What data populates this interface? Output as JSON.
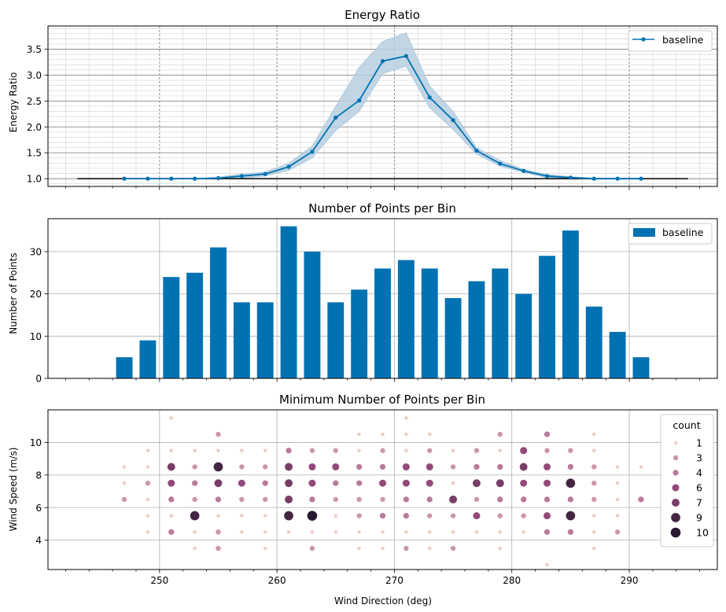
{
  "chart_data": [
    {
      "type": "line",
      "title": "Energy Ratio",
      "xlabel": "",
      "ylabel": "Energy Ratio",
      "xlim": [
        240.5,
        297.5
      ],
      "ylim": [
        0.85,
        3.95
      ],
      "yticks": [
        1.0,
        1.5,
        2.0,
        2.5,
        3.0,
        3.5
      ],
      "ytick_labels": [
        "1.0",
        "1.5",
        "2.0",
        "2.5",
        "3.0",
        "3.5"
      ],
      "minor_gridlines": true,
      "legend": "upper right",
      "reference_line": {
        "x": [
          243,
          295
        ],
        "y": 1.0,
        "color": "#000000"
      },
      "series": [
        {
          "name": "baseline",
          "color": "#0072b2",
          "band_color": "#b7cfe1",
          "x": [
            247,
            249,
            251,
            253,
            255,
            257,
            259,
            261,
            263,
            265,
            267,
            269,
            271,
            273,
            275,
            277,
            279,
            281,
            283,
            285,
            287,
            289,
            291
          ],
          "values": [
            1.0,
            1.0,
            1.0,
            1.0,
            1.01,
            1.05,
            1.09,
            1.23,
            1.52,
            2.18,
            2.51,
            3.27,
            3.37,
            2.57,
            2.13,
            1.54,
            1.29,
            1.15,
            1.05,
            1.02,
            1.0,
            1.0,
            1.0
          ],
          "lower": [
            1.0,
            1.0,
            1.0,
            1.0,
            0.99,
            1.01,
            1.05,
            1.16,
            1.4,
            1.93,
            2.3,
            3.03,
            3.17,
            2.37,
            1.95,
            1.47,
            1.24,
            1.12,
            1.02,
            1.0,
            0.99,
            0.99,
            0.99
          ],
          "upper": [
            1.0,
            1.0,
            1.0,
            1.0,
            1.03,
            1.09,
            1.13,
            1.3,
            1.63,
            2.4,
            3.15,
            3.65,
            3.82,
            2.79,
            2.3,
            1.6,
            1.35,
            1.18,
            1.08,
            1.04,
            1.01,
            1.01,
            1.01
          ]
        }
      ]
    },
    {
      "type": "bar",
      "title": "Number of Points per Bin",
      "xlabel": "",
      "ylabel": "Number of Points",
      "xlim": [
        240.5,
        297.5
      ],
      "ylim": [
        0,
        37.8
      ],
      "yticks": [
        0,
        10,
        20,
        30
      ],
      "legend": "upper right",
      "series": [
        {
          "name": "baseline",
          "color": "#0072b2",
          "bar_width": 1.4,
          "x": [
            247,
            249,
            251,
            253,
            255,
            257,
            259,
            261,
            263,
            265,
            267,
            269,
            271,
            273,
            275,
            277,
            279,
            281,
            283,
            285,
            287,
            289,
            291
          ],
          "values": [
            5,
            9,
            24,
            25,
            31,
            18,
            18,
            36,
            30,
            18,
            21,
            26,
            28,
            26,
            19,
            23,
            26,
            20,
            29,
            35,
            17,
            11,
            5
          ]
        }
      ]
    },
    {
      "type": "scatter",
      "title": "Minimum Number of Points per Bin",
      "xlabel": "Wind Direction (deg)",
      "ylabel": "Wind Speed (m/s)",
      "xlim": [
        240.5,
        297.5
      ],
      "ylim": [
        2.2,
        12.0
      ],
      "xticks": [
        250,
        260,
        270,
        280,
        290
      ],
      "yticks": [
        4,
        6,
        8,
        10
      ],
      "legend": "upper right",
      "legend_title": "count",
      "legend_entries": [
        {
          "label": "1",
          "value": 1
        },
        {
          "label": "3",
          "value": 3
        },
        {
          "label": "4",
          "value": 4
        },
        {
          "label": "6",
          "value": 6
        },
        {
          "label": "7",
          "value": 7
        },
        {
          "label": "9",
          "value": 9
        },
        {
          "label": "10",
          "value": 10
        }
      ],
      "points": [
        {
          "x": 247,
          "y": 8.5,
          "count": 1
        },
        {
          "x": 247,
          "y": 7.5,
          "count": 1
        },
        {
          "x": 247,
          "y": 6.5,
          "count": 3
        },
        {
          "x": 249,
          "y": 9.5,
          "count": 1
        },
        {
          "x": 249,
          "y": 8.5,
          "count": 1
        },
        {
          "x": 249,
          "y": 7.5,
          "count": 3
        },
        {
          "x": 249,
          "y": 6.5,
          "count": 1
        },
        {
          "x": 249,
          "y": 5.5,
          "count": 1
        },
        {
          "x": 249,
          "y": 4.5,
          "count": 1
        },
        {
          "x": 251,
          "y": 11.5,
          "count": 1
        },
        {
          "x": 251,
          "y": 9.5,
          "count": 1
        },
        {
          "x": 251,
          "y": 8.5,
          "count": 7
        },
        {
          "x": 251,
          "y": 7.5,
          "count": 6
        },
        {
          "x": 251,
          "y": 6.5,
          "count": 4
        },
        {
          "x": 251,
          "y": 5.5,
          "count": 1
        },
        {
          "x": 251,
          "y": 4.5,
          "count": 4
        },
        {
          "x": 253,
          "y": 9.5,
          "count": 1
        },
        {
          "x": 253,
          "y": 8.5,
          "count": 3
        },
        {
          "x": 253,
          "y": 7.5,
          "count": 4
        },
        {
          "x": 253,
          "y": 6.5,
          "count": 3
        },
        {
          "x": 253,
          "y": 5.5,
          "count": 9
        },
        {
          "x": 253,
          "y": 4.5,
          "count": 1
        },
        {
          "x": 253,
          "y": 3.5,
          "count": 1
        },
        {
          "x": 255,
          "y": 10.5,
          "count": 3
        },
        {
          "x": 255,
          "y": 9.5,
          "count": 1
        },
        {
          "x": 255,
          "y": 8.5,
          "count": 9
        },
        {
          "x": 255,
          "y": 7.5,
          "count": 7
        },
        {
          "x": 255,
          "y": 6.5,
          "count": 4
        },
        {
          "x": 255,
          "y": 5.5,
          "count": 1
        },
        {
          "x": 255,
          "y": 4.5,
          "count": 3
        },
        {
          "x": 255,
          "y": 3.5,
          "count": 3
        },
        {
          "x": 257,
          "y": 9.5,
          "count": 1
        },
        {
          "x": 257,
          "y": 8.5,
          "count": 3
        },
        {
          "x": 257,
          "y": 7.5,
          "count": 6
        },
        {
          "x": 257,
          "y": 6.5,
          "count": 3
        },
        {
          "x": 257,
          "y": 5.5,
          "count": 1
        },
        {
          "x": 257,
          "y": 4.5,
          "count": 1
        },
        {
          "x": 259,
          "y": 9.5,
          "count": 1
        },
        {
          "x": 259,
          "y": 8.5,
          "count": 3
        },
        {
          "x": 259,
          "y": 7.5,
          "count": 4
        },
        {
          "x": 259,
          "y": 6.5,
          "count": 3
        },
        {
          "x": 259,
          "y": 5.5,
          "count": 1
        },
        {
          "x": 259,
          "y": 4.5,
          "count": 1
        },
        {
          "x": 259,
          "y": 3.5,
          "count": 1
        },
        {
          "x": 261,
          "y": 9.5,
          "count": 4
        },
        {
          "x": 261,
          "y": 8.5,
          "count": 7
        },
        {
          "x": 261,
          "y": 7.5,
          "count": 7
        },
        {
          "x": 261,
          "y": 6.5,
          "count": 7
        },
        {
          "x": 261,
          "y": 5.5,
          "count": 9
        },
        {
          "x": 261,
          "y": 4.5,
          "count": 1
        },
        {
          "x": 263,
          "y": 9.5,
          "count": 3
        },
        {
          "x": 263,
          "y": 8.5,
          "count": 6
        },
        {
          "x": 263,
          "y": 7.5,
          "count": 6
        },
        {
          "x": 263,
          "y": 6.5,
          "count": 4
        },
        {
          "x": 263,
          "y": 5.5,
          "count": 10
        },
        {
          "x": 263,
          "y": 4.5,
          "count": 1
        },
        {
          "x": 263,
          "y": 3.5,
          "count": 3
        },
        {
          "x": 265,
          "y": 9.5,
          "count": 3
        },
        {
          "x": 265,
          "y": 8.5,
          "count": 6
        },
        {
          "x": 265,
          "y": 7.5,
          "count": 4
        },
        {
          "x": 265,
          "y": 6.5,
          "count": 3
        },
        {
          "x": 265,
          "y": 5.5,
          "count": 1
        },
        {
          "x": 265,
          "y": 4.5,
          "count": 1
        },
        {
          "x": 267,
          "y": 10.5,
          "count": 1
        },
        {
          "x": 267,
          "y": 9.5,
          "count": 1
        },
        {
          "x": 267,
          "y": 8.5,
          "count": 4
        },
        {
          "x": 267,
          "y": 7.5,
          "count": 4
        },
        {
          "x": 267,
          "y": 6.5,
          "count": 3
        },
        {
          "x": 267,
          "y": 5.5,
          "count": 3
        },
        {
          "x": 267,
          "y": 4.5,
          "count": 1
        },
        {
          "x": 267,
          "y": 3.5,
          "count": 1
        },
        {
          "x": 269,
          "y": 10.5,
          "count": 1
        },
        {
          "x": 269,
          "y": 9.5,
          "count": 3
        },
        {
          "x": 269,
          "y": 8.5,
          "count": 4
        },
        {
          "x": 269,
          "y": 7.5,
          "count": 6
        },
        {
          "x": 269,
          "y": 6.5,
          "count": 3
        },
        {
          "x": 269,
          "y": 5.5,
          "count": 4
        },
        {
          "x": 269,
          "y": 4.5,
          "count": 1
        },
        {
          "x": 269,
          "y": 3.5,
          "count": 1
        },
        {
          "x": 271,
          "y": 11.5,
          "count": 1
        },
        {
          "x": 271,
          "y": 10.5,
          "count": 1
        },
        {
          "x": 271,
          "y": 9.5,
          "count": 1
        },
        {
          "x": 271,
          "y": 8.5,
          "count": 6
        },
        {
          "x": 271,
          "y": 7.5,
          "count": 6
        },
        {
          "x": 271,
          "y": 6.5,
          "count": 4
        },
        {
          "x": 271,
          "y": 5.5,
          "count": 4
        },
        {
          "x": 271,
          "y": 4.5,
          "count": 1
        },
        {
          "x": 271,
          "y": 3.5,
          "count": 3
        },
        {
          "x": 273,
          "y": 10.5,
          "count": 1
        },
        {
          "x": 273,
          "y": 9.5,
          "count": 3
        },
        {
          "x": 273,
          "y": 8.5,
          "count": 6
        },
        {
          "x": 273,
          "y": 7.5,
          "count": 6
        },
        {
          "x": 273,
          "y": 6.5,
          "count": 4
        },
        {
          "x": 273,
          "y": 5.5,
          "count": 3
        },
        {
          "x": 273,
          "y": 4.5,
          "count": 1
        },
        {
          "x": 273,
          "y": 3.5,
          "count": 1
        },
        {
          "x": 275,
          "y": 9.5,
          "count": 1
        },
        {
          "x": 275,
          "y": 8.5,
          "count": 3
        },
        {
          "x": 275,
          "y": 7.5,
          "count": 1
        },
        {
          "x": 275,
          "y": 6.5,
          "count": 7
        },
        {
          "x": 275,
          "y": 5.5,
          "count": 3
        },
        {
          "x": 275,
          "y": 4.5,
          "count": 1
        },
        {
          "x": 275,
          "y": 3.5,
          "count": 3
        },
        {
          "x": 277,
          "y": 9.5,
          "count": 3
        },
        {
          "x": 277,
          "y": 8.5,
          "count": 4
        },
        {
          "x": 277,
          "y": 7.5,
          "count": 7
        },
        {
          "x": 277,
          "y": 6.5,
          "count": 3
        },
        {
          "x": 277,
          "y": 5.5,
          "count": 6
        },
        {
          "x": 277,
          "y": 4.5,
          "count": 1
        },
        {
          "x": 279,
          "y": 10.5,
          "count": 3
        },
        {
          "x": 279,
          "y": 9.5,
          "count": 1
        },
        {
          "x": 279,
          "y": 8.5,
          "count": 4
        },
        {
          "x": 279,
          "y": 7.5,
          "count": 7
        },
        {
          "x": 279,
          "y": 6.5,
          "count": 4
        },
        {
          "x": 279,
          "y": 5.5,
          "count": 3
        },
        {
          "x": 279,
          "y": 4.5,
          "count": 1
        },
        {
          "x": 279,
          "y": 3.5,
          "count": 1
        },
        {
          "x": 281,
          "y": 9.5,
          "count": 6
        },
        {
          "x": 281,
          "y": 8.5,
          "count": 7
        },
        {
          "x": 281,
          "y": 7.5,
          "count": 6
        },
        {
          "x": 281,
          "y": 6.5,
          "count": 4
        },
        {
          "x": 281,
          "y": 5.5,
          "count": 3
        },
        {
          "x": 281,
          "y": 4.5,
          "count": 1
        },
        {
          "x": 283,
          "y": 10.5,
          "count": 4
        },
        {
          "x": 283,
          "y": 9.5,
          "count": 3
        },
        {
          "x": 283,
          "y": 8.5,
          "count": 6
        },
        {
          "x": 283,
          "y": 7.5,
          "count": 6
        },
        {
          "x": 283,
          "y": 6.5,
          "count": 4
        },
        {
          "x": 283,
          "y": 5.5,
          "count": 6
        },
        {
          "x": 283,
          "y": 4.5,
          "count": 4
        },
        {
          "x": 283,
          "y": 2.5,
          "count": 1
        },
        {
          "x": 285,
          "y": 9.5,
          "count": 3
        },
        {
          "x": 285,
          "y": 8.5,
          "count": 4
        },
        {
          "x": 285,
          "y": 7.5,
          "count": 9
        },
        {
          "x": 285,
          "y": 6.5,
          "count": 4
        },
        {
          "x": 285,
          "y": 5.5,
          "count": 9
        },
        {
          "x": 285,
          "y": 4.5,
          "count": 4
        },
        {
          "x": 287,
          "y": 10.5,
          "count": 1
        },
        {
          "x": 287,
          "y": 9.5,
          "count": 1
        },
        {
          "x": 287,
          "y": 8.5,
          "count": 3
        },
        {
          "x": 287,
          "y": 7.5,
          "count": 3
        },
        {
          "x": 287,
          "y": 6.5,
          "count": 3
        },
        {
          "x": 287,
          "y": 5.5,
          "count": 1
        },
        {
          "x": 287,
          "y": 4.5,
          "count": 1
        },
        {
          "x": 287,
          "y": 3.5,
          "count": 1
        },
        {
          "x": 289,
          "y": 8.5,
          "count": 1
        },
        {
          "x": 289,
          "y": 7.5,
          "count": 1
        },
        {
          "x": 289,
          "y": 6.5,
          "count": 1
        },
        {
          "x": 289,
          "y": 5.5,
          "count": 1
        },
        {
          "x": 289,
          "y": 4.5,
          "count": 3
        },
        {
          "x": 291,
          "y": 8.5,
          "count": 1
        },
        {
          "x": 291,
          "y": 6.5,
          "count": 4
        }
      ]
    }
  ]
}
